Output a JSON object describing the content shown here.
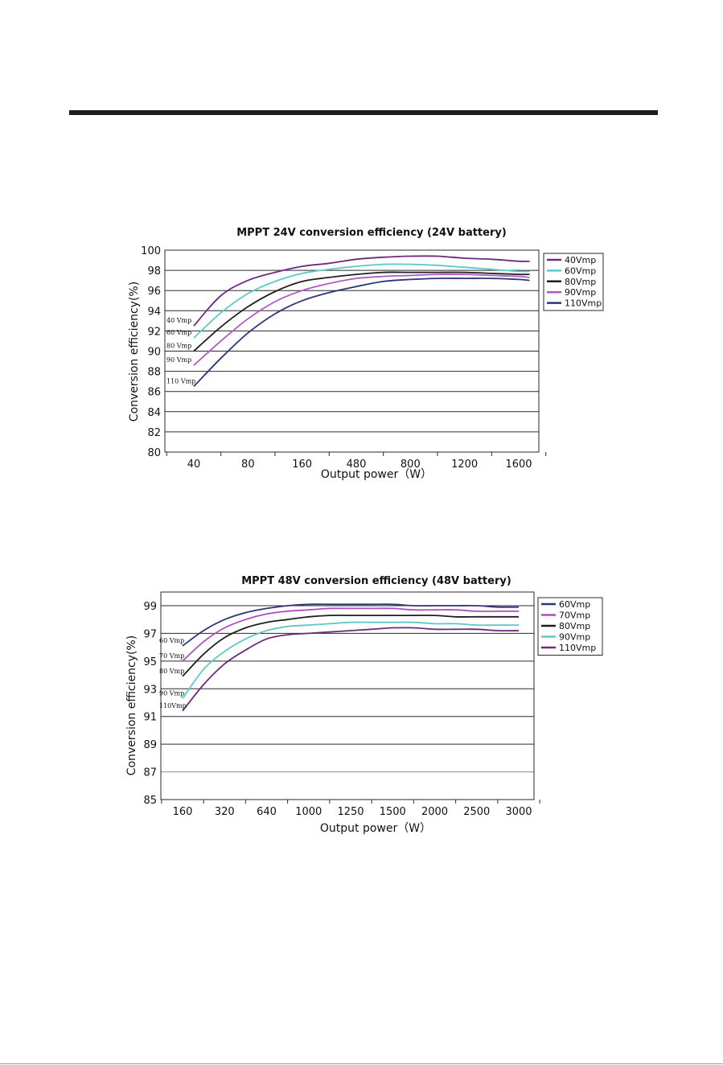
{
  "chart_data": [
    {
      "type": "line",
      "title": "MPPT 24V conversion efficiency (24V battery)",
      "xlabel": "Output power（W）",
      "ylabel": "Conversion efficiency(%)",
      "categories": [
        "40",
        "80",
        "160",
        "480",
        "800",
        "1200",
        "1600"
      ],
      "ylim": [
        80,
        100
      ],
      "yticks": [
        80,
        82,
        84,
        86,
        88,
        90,
        92,
        94,
        96,
        98,
        100
      ],
      "grid": true,
      "legend": "right",
      "series": [
        {
          "name": "40Vmp",
          "inline_label": "40 Vmp",
          "color": "#6a2a7e",
          "x": [
            0,
            0.5,
            1,
            1.5,
            2,
            2.5,
            3,
            3.5,
            4,
            4.5,
            5,
            5.5,
            6,
            6.2
          ],
          "values": [
            92.5,
            95.5,
            97.0,
            97.8,
            98.4,
            98.7,
            99.1,
            99.3,
            99.4,
            99.4,
            99.2,
            99.1,
            98.9,
            98.9
          ]
        },
        {
          "name": "60Vmp",
          "inline_label": "60 Vmp",
          "color": "#5cc8c9",
          "x": [
            0,
            0.5,
            1,
            1.5,
            2,
            2.5,
            3,
            3.5,
            4,
            4.5,
            5,
            5.5,
            6,
            6.2
          ],
          "values": [
            91.3,
            93.8,
            95.7,
            96.9,
            97.7,
            98.1,
            98.4,
            98.6,
            98.6,
            98.5,
            98.3,
            98.1,
            97.9,
            97.9
          ]
        },
        {
          "name": "80Vmp",
          "inline_label": "80 Vmp",
          "color": "#1f1f1f",
          "x": [
            0,
            0.5,
            1,
            1.5,
            2,
            2.5,
            3,
            3.5,
            4,
            4.5,
            5,
            5.5,
            6,
            6.2
          ],
          "values": [
            90.0,
            92.4,
            94.4,
            95.9,
            96.9,
            97.3,
            97.6,
            97.8,
            97.8,
            97.8,
            97.8,
            97.7,
            97.6,
            97.6
          ]
        },
        {
          "name": "90Vmp",
          "inline_label": "90 Vmp",
          "color": "#b259c4",
          "x": [
            0,
            0.5,
            1,
            1.5,
            2,
            2.5,
            3,
            3.5,
            4,
            4.5,
            5,
            5.5,
            6,
            6.2
          ],
          "values": [
            88.6,
            91.0,
            93.2,
            94.9,
            96.0,
            96.7,
            97.2,
            97.4,
            97.5,
            97.6,
            97.6,
            97.5,
            97.4,
            97.3
          ]
        },
        {
          "name": "110Vmp",
          "inline_label": "110 Vmp",
          "color": "#2e3675",
          "x": [
            0,
            0.5,
            1,
            1.5,
            2,
            2.5,
            3,
            3.5,
            4,
            4.5,
            5,
            5.5,
            6,
            6.2
          ],
          "values": [
            86.5,
            89.3,
            91.8,
            93.7,
            95.0,
            95.8,
            96.4,
            96.9,
            97.1,
            97.2,
            97.2,
            97.2,
            97.1,
            97.0
          ]
        }
      ]
    },
    {
      "type": "line",
      "title": "MPPT 48V conversion efficiency (48V battery)",
      "xlabel": "Output power（W）",
      "ylabel": "Conversion efficiency(%)",
      "categories": [
        "160",
        "320",
        "640",
        "1000",
        "1250",
        "1500",
        "2000",
        "2500",
        "3000"
      ],
      "ylim": [
        85,
        100
      ],
      "yticks": [
        85,
        87,
        89,
        91,
        93,
        95,
        97,
        99
      ],
      "grid": true,
      "legend": "right",
      "series": [
        {
          "name": "60Vmp",
          "inline_label": "60 Vmp",
          "color": "#2e3675",
          "x": [
            0,
            0.5,
            1,
            1.5,
            2,
            2.5,
            3,
            3.5,
            4,
            4.5,
            5,
            5.5,
            6,
            6.5,
            7,
            7.5,
            8
          ],
          "values": [
            96.1,
            97.2,
            98.0,
            98.5,
            98.8,
            99.0,
            99.1,
            99.1,
            99.1,
            99.1,
            99.1,
            99.0,
            99.0,
            99.0,
            99.0,
            98.9,
            98.9
          ]
        },
        {
          "name": "70Vmp",
          "inline_label": "70 Vmp",
          "color": "#b04cc2",
          "x": [
            0,
            0.5,
            1,
            1.5,
            2,
            2.5,
            3,
            3.5,
            4,
            4.5,
            5,
            5.5,
            6,
            6.5,
            7,
            7.5,
            8
          ],
          "values": [
            95.0,
            96.4,
            97.4,
            98.0,
            98.4,
            98.6,
            98.7,
            98.8,
            98.8,
            98.8,
            98.8,
            98.7,
            98.7,
            98.7,
            98.6,
            98.6,
            98.6
          ]
        },
        {
          "name": "80Vmp",
          "inline_label": "80 Vmp",
          "color": "#1f1f1f",
          "x": [
            0,
            0.5,
            1,
            1.5,
            2,
            2.5,
            3,
            3.5,
            4,
            4.5,
            5,
            5.5,
            6,
            6.5,
            7,
            7.5,
            8
          ],
          "values": [
            93.9,
            95.5,
            96.7,
            97.4,
            97.8,
            98.0,
            98.2,
            98.3,
            98.3,
            98.3,
            98.3,
            98.3,
            98.3,
            98.2,
            98.2,
            98.2,
            98.2
          ]
        },
        {
          "name": "90Vmp",
          "inline_label": "90 Vmp",
          "color": "#5cc8c9",
          "x": [
            0,
            0.5,
            1,
            1.5,
            2,
            2.5,
            3,
            3.5,
            4,
            4.5,
            5,
            5.5,
            6,
            6.5,
            7,
            7.5,
            8
          ],
          "values": [
            92.3,
            94.4,
            95.7,
            96.6,
            97.2,
            97.5,
            97.6,
            97.7,
            97.8,
            97.8,
            97.8,
            97.8,
            97.7,
            97.7,
            97.6,
            97.6,
            97.6
          ]
        },
        {
          "name": "110Vmp",
          "inline_label": "110Vmp",
          "color": "#6a2a7e",
          "x": [
            0,
            0.5,
            1,
            1.5,
            2,
            2.5,
            3,
            3.5,
            4,
            4.5,
            5,
            5.5,
            6,
            6.5,
            7,
            7.5,
            8
          ],
          "values": [
            91.4,
            93.3,
            94.8,
            95.8,
            96.6,
            96.9,
            97.0,
            97.1,
            97.2,
            97.3,
            97.4,
            97.4,
            97.3,
            97.3,
            97.3,
            97.2,
            97.2
          ]
        }
      ]
    }
  ]
}
